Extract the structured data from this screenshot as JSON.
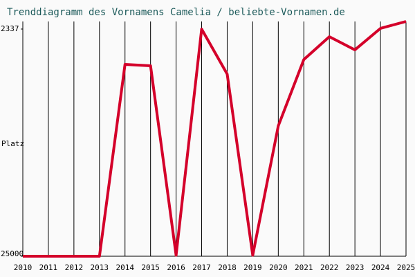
{
  "chart_data": {
    "type": "line",
    "title": "Trenddiagramm des Vornamens Camelia / beliebte-Vornamen.de",
    "ylabel": "Platz",
    "x": [
      2010,
      2011,
      2012,
      2013,
      2014,
      2015,
      2016,
      2017,
      2018,
      2019,
      2020,
      2021,
      2022,
      2023,
      2024,
      2025
    ],
    "xlim": [
      2010,
      2025
    ],
    "xticks": [
      2010,
      2011,
      2012,
      2013,
      2014,
      2015,
      2016,
      2017,
      2018,
      2019,
      2020,
      2021,
      2022,
      2023,
      2024,
      2025
    ],
    "series": [
      {
        "color": "#d4002a",
        "values": [
          25000,
          25000,
          25000,
          25000,
          5860,
          6000,
          24900,
          2337,
          6830,
          24900,
          12000,
          5380,
          3100,
          4410,
          2270,
          1580
        ]
      }
    ],
    "ylim": [
      25000,
      1580
    ],
    "yticks": [
      2337,
      25000
    ],
    "grid": true
  }
}
